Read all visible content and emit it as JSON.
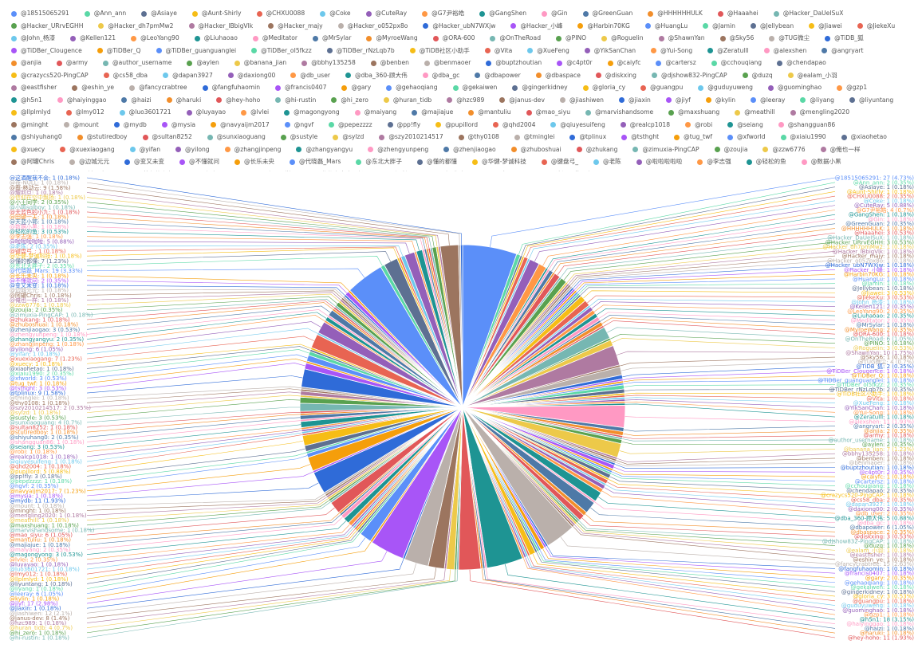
{
  "chart_data": {
    "type": "pie",
    "slices": [
      {
        "name": "@18515065291",
        "value": 27,
        "pct": "4.73%"
      },
      {
        "name": "@Ann_ann",
        "value": 2,
        "pct": "0.35%"
      },
      {
        "name": "@Asiaye",
        "value": 1,
        "pct": "0.18%"
      },
      {
        "name": "@Aunt-Shirly",
        "value": 1,
        "pct": "0.18%"
      },
      {
        "name": "@CHXU0088",
        "value": 2,
        "pct": "0.35%"
      },
      {
        "name": "@Coke",
        "value": 1,
        "pct": "0.18%"
      },
      {
        "name": "@CuteRay",
        "value": 5,
        "pct": "0.88%"
      },
      {
        "name": "@G7尹裕皓",
        "value": 4,
        "pct": "0.7%"
      },
      {
        "name": "@GangShen",
        "value": 1,
        "pct": "0.18%"
      },
      {
        "name": "@Gin",
        "value": 1,
        "pct": "0.18%"
      },
      {
        "name": "@GreenGuan",
        "value": 2,
        "pct": "0.35%"
      },
      {
        "name": "@HHHHHHULK",
        "value": 1,
        "pct": "0.18%"
      },
      {
        "name": "@Haaahei",
        "value": 3,
        "pct": "0.53%"
      },
      {
        "name": "@Hacker_DaUeISuX",
        "value": 1,
        "pct": "0.18%"
      },
      {
        "name": "@Hacker_URrvEGHH",
        "value": 3,
        "pct": "0.53%"
      },
      {
        "name": "@Hacker_dh7pmMw2",
        "value": 1,
        "pct": "0.18%"
      },
      {
        "name": "@Hacker_lBbigVlk",
        "value": 1,
        "pct": "0.18%"
      },
      {
        "name": "@Hacker_majy",
        "value": 1,
        "pct": "0.18%"
      },
      {
        "name": "@Hacker_o052px8o",
        "value": 1,
        "pct": "0.18%"
      },
      {
        "name": "@Hacker_ubN7WXjw",
        "value": 1,
        "pct": "0.18%"
      },
      {
        "name": "@Hacker_小峰",
        "value": 1,
        "pct": "0.18%"
      },
      {
        "name": "@Harbin70KG",
        "value": 1,
        "pct": "0.18%"
      },
      {
        "name": "@HuangLu",
        "value": 1,
        "pct": "0.18%"
      },
      {
        "name": "@Jamin",
        "value": 1,
        "pct": "0.18%"
      },
      {
        "name": "@Jellybean",
        "value": 1,
        "pct": "0.18%"
      },
      {
        "name": "@Jiawei",
        "value": 3,
        "pct": "0.53%"
      },
      {
        "name": "@JiekeXu",
        "value": 3,
        "pct": "0.53%"
      },
      {
        "name": "@John_杨漆",
        "value": 1,
        "pct": "0.18%"
      },
      {
        "name": "@Kellen121",
        "value": 2,
        "pct": "0.35%"
      },
      {
        "name": "@LeoYang90",
        "value": 2,
        "pct": "0.35%"
      },
      {
        "name": "@Liuhaoao",
        "value": 2,
        "pct": "0.35%"
      },
      {
        "name": "@Meditator",
        "value": 2,
        "pct": "0.35%"
      },
      {
        "name": "@MrSylar",
        "value": 1,
        "pct": "0.18%"
      },
      {
        "name": "@MyroeWang",
        "value": 2,
        "pct": "0.35%"
      },
      {
        "name": "@ORA-600",
        "value": 1,
        "pct": "0.18%"
      },
      {
        "name": "@OnTheRoad",
        "value": 6,
        "pct": "1.05%"
      },
      {
        "name": "@PINO",
        "value": 1,
        "pct": "0.18%"
      },
      {
        "name": "@Roguelin",
        "value": 3,
        "pct": "0.53%"
      },
      {
        "name": "@ShawnYan",
        "value": 10,
        "pct": "1.75%"
      },
      {
        "name": "@Sky56",
        "value": 1,
        "pct": "0.18%"
      },
      {
        "name": "@TUG微尘",
        "value": 4,
        "pct": "0.7%"
      },
      {
        "name": "@TiDB_狐",
        "value": 2,
        "pct": "0.35%"
      },
      {
        "name": "@TiDBer_Clougence",
        "value": 1,
        "pct": "0.18%"
      },
      {
        "name": "@TiDBer_Q",
        "value": 1,
        "pct": "0.18%"
      },
      {
        "name": "@TiDBer_guanguanglei",
        "value": 1,
        "pct": "0.18%"
      },
      {
        "name": "@TiDBer_oI5fkzz",
        "value": 2,
        "pct": "0.35%"
      },
      {
        "name": "@TiDBer_rNzLqb7b",
        "value": 2,
        "pct": "0.35%"
      },
      {
        "name": "@TiDB社区小助手",
        "value": 1,
        "pct": "0.18%"
      },
      {
        "name": "@Vita",
        "value": 1,
        "pct": "0.18%"
      },
      {
        "name": "@XueFeng",
        "value": 1,
        "pct": "0.18%"
      },
      {
        "name": "@YikSanChan",
        "value": 1,
        "pct": "0.18%"
      },
      {
        "name": "@Yui-Song",
        "value": 1,
        "pct": "0.18%"
      },
      {
        "name": "@Zeratulll",
        "value": 1,
        "pct": "0.18%"
      },
      {
        "name": "@alexshen",
        "value": 11,
        "pct": "1.93%"
      },
      {
        "name": "@angryart",
        "value": 2,
        "pct": "0.35%"
      },
      {
        "name": "@anjia",
        "value": 2,
        "pct": "0.35%"
      },
      {
        "name": "@army",
        "value": 1,
        "pct": "0.18%"
      },
      {
        "name": "@author_username",
        "value": 1,
        "pct": "0.18%"
      },
      {
        "name": "@aylen",
        "value": 2,
        "pct": "0.35%"
      },
      {
        "name": "@banana_jian",
        "value": 7,
        "pct": "1.23%"
      },
      {
        "name": "@bbhy135258",
        "value": 1,
        "pct": "0.18%"
      },
      {
        "name": "@benben",
        "value": 1,
        "pct": "0.18%"
      },
      {
        "name": "@benmaoer",
        "value": 1,
        "pct": "0.18%"
      },
      {
        "name": "@buptzhoutian",
        "value": 1,
        "pct": "0.18%"
      },
      {
        "name": "@c4pt0r",
        "value": 2,
        "pct": "0.35%"
      },
      {
        "name": "@caiyfc",
        "value": 1,
        "pct": "0.18%"
      },
      {
        "name": "@cartersz",
        "value": 1,
        "pct": "0.18%"
      },
      {
        "name": "@cchouqiang",
        "value": 1,
        "pct": "0.18%"
      },
      {
        "name": "@chendapao",
        "value": 2,
        "pct": "0.35%"
      },
      {
        "name": "@crazycs520-PingCAP",
        "value": 1,
        "pct": "0.18%"
      },
      {
        "name": "@cs58_dba",
        "value": 2,
        "pct": "0.35%"
      },
      {
        "name": "@dapan3927",
        "value": 1,
        "pct": "0.18%"
      },
      {
        "name": "@daxiong00",
        "value": 2,
        "pct": "0.35%"
      },
      {
        "name": "@db_user",
        "value": 2,
        "pct": "0.35%"
      },
      {
        "name": "@dba_360-顾大伟",
        "value": 5,
        "pct": "0.88%"
      },
      {
        "name": "@dba_gc",
        "value": 1,
        "pct": "0.18%"
      },
      {
        "name": "@dbapower",
        "value": 6,
        "pct": "1.05%"
      },
      {
        "name": "@dbaspace",
        "value": 2,
        "pct": "0.35%"
      },
      {
        "name": "@diskxing",
        "value": 3,
        "pct": "0.53%"
      },
      {
        "name": "@djshow832-PingCAP",
        "value": 1,
        "pct": "0.18%"
      },
      {
        "name": "@duzq",
        "value": 1,
        "pct": "0.18%"
      },
      {
        "name": "@ealam_小羽",
        "value": 1,
        "pct": "0.18%"
      },
      {
        "name": "@eastfisher",
        "value": 1,
        "pct": "0.18%"
      },
      {
        "name": "@eshin_ye",
        "value": 1,
        "pct": "0.18%"
      },
      {
        "name": "@fancycrabtree",
        "value": 15,
        "pct": "2.63%"
      },
      {
        "name": "@fangfuhaomin",
        "value": 1,
        "pct": "0.18%"
      },
      {
        "name": "@francis0407",
        "value": 1,
        "pct": "0.18%"
      },
      {
        "name": "@gary",
        "value": 2,
        "pct": "0.35%"
      },
      {
        "name": "@gehaoqiang",
        "value": 1,
        "pct": "0.18%"
      },
      {
        "name": "@gekaiwen",
        "value": 1,
        "pct": "0.18%"
      },
      {
        "name": "@gingerkidney",
        "value": 1,
        "pct": "0.18%"
      },
      {
        "name": "@gloria_cy",
        "value": 3,
        "pct": "0.53%"
      },
      {
        "name": "@guangpu",
        "value": 1,
        "pct": "0.18%"
      },
      {
        "name": "@guduyuweng",
        "value": 1,
        "pct": "0.18%"
      },
      {
        "name": "@guominghao",
        "value": 1,
        "pct": "0.18%"
      },
      {
        "name": "@gzp1",
        "value": 1,
        "pct": "0.18%"
      },
      {
        "name": "@h5n1",
        "value": 18,
        "pct": "3.15%"
      },
      {
        "name": "@haiyinggao",
        "value": 1,
        "pct": "0.18%"
      },
      {
        "name": "@haizi",
        "value": 1,
        "pct": "0.18%"
      },
      {
        "name": "@haruki",
        "value": 1,
        "pct": "0.18%"
      },
      {
        "name": "@hey-hoho",
        "value": 11,
        "pct": "1.93%"
      },
      {
        "name": "@hi-rustin",
        "value": 1,
        "pct": "0.18%"
      },
      {
        "name": "@hi_zero",
        "value": 1,
        "pct": "0.18%"
      },
      {
        "name": "@huran_tidb",
        "value": 4,
        "pct": "0.7%"
      },
      {
        "name": "@hzc989",
        "value": 1,
        "pct": "0.18%"
      },
      {
        "name": "@janus-dev",
        "value": 8,
        "pct": "1.4%"
      },
      {
        "name": "@jiashiwen",
        "value": 12,
        "pct": "2.1%"
      },
      {
        "name": "@jiaxin",
        "value": 1,
        "pct": "0.18%"
      },
      {
        "name": "@jiyf",
        "value": 17,
        "pct": "2.98%"
      },
      {
        "name": "@kylin",
        "value": 1,
        "pct": "0.18%"
      },
      {
        "name": "@leeray",
        "value": 6,
        "pct": "1.05%"
      },
      {
        "name": "@liyang",
        "value": 1,
        "pct": "0.18%"
      },
      {
        "name": "@liyuntang",
        "value": 1,
        "pct": "0.18%"
      },
      {
        "name": "@llplmlyd",
        "value": 1,
        "pct": "0.18%"
      },
      {
        "name": "@lmy012",
        "value": 1,
        "pct": "0.18%"
      },
      {
        "name": "@luo3601721",
        "value": 1,
        "pct": "0.18%"
      },
      {
        "name": "@luyayao",
        "value": 1,
        "pct": "0.18%"
      },
      {
        "name": "@lvlei",
        "value": 2,
        "pct": "0.35%"
      },
      {
        "name": "@magongyong",
        "value": 3,
        "pct": "0.53%"
      },
      {
        "name": "@maiyang",
        "value": 2,
        "pct": "0.35%"
      },
      {
        "name": "@majiajue",
        "value": 1,
        "pct": "0.18%"
      },
      {
        "name": "@mantuliu",
        "value": 1,
        "pct": "0.18%"
      },
      {
        "name": "@mao_siyu",
        "value": 6,
        "pct": "1.05%"
      },
      {
        "name": "@marvishandsome",
        "value": 1,
        "pct": "0.18%"
      },
      {
        "name": "@maxshuang",
        "value": 1,
        "pct": "0.18%"
      },
      {
        "name": "@meathill",
        "value": 1,
        "pct": "0.18%"
      },
      {
        "name": "@mengling2020",
        "value": 1,
        "pct": "0.18%"
      },
      {
        "name": "@minght",
        "value": 1,
        "pct": "0.18%"
      },
      {
        "name": "@mount",
        "value": 1,
        "pct": "0.18%"
      },
      {
        "name": "@mydb",
        "value": 11,
        "pct": "1.93%"
      },
      {
        "name": "@mysia",
        "value": 1,
        "pct": "0.18%"
      },
      {
        "name": "@navyaijm2017",
        "value": 7,
        "pct": "1.23%"
      },
      {
        "name": "@ngvf",
        "value": 2,
        "pct": "0.35%"
      },
      {
        "name": "@pepezzzz",
        "value": 1,
        "pct": "0.18%"
      },
      {
        "name": "@pp!fly",
        "value": 3,
        "pct": "0.18%"
      },
      {
        "name": "@pupillord",
        "value": 5,
        "pct": "0.88%"
      },
      {
        "name": "@qhd2004",
        "value": 1,
        "pct": "0.18%"
      },
      {
        "name": "@qiuyesuifeng",
        "value": 1,
        "pct": "0.18%"
      },
      {
        "name": "@realcp1018",
        "value": 1,
        "pct": "0.18%"
      },
      {
        "name": "@robi",
        "value": 1,
        "pct": "0.18%"
      },
      {
        "name": "@seiang",
        "value": 3,
        "pct": "0.53%"
      },
      {
        "name": "@shangguan86",
        "value": 1,
        "pct": "0.18%"
      },
      {
        "name": "@shiyuhang0",
        "value": 2,
        "pct": "0.35%"
      },
      {
        "name": "@stutiredboy",
        "value": 1,
        "pct": "0.18%"
      },
      {
        "name": "@sultan8252",
        "value": 1,
        "pct": "0.18%"
      },
      {
        "name": "@sunxiaoguang",
        "value": 4,
        "pct": "0.7%"
      },
      {
        "name": "@sustyle",
        "value": 3,
        "pct": "0.53%"
      },
      {
        "name": "@sylzd",
        "value": 1,
        "pct": "0.18%"
      },
      {
        "name": "@szy2010214517",
        "value": 2,
        "pct": "0.35%"
      },
      {
        "name": "@thy0108",
        "value": 1,
        "pct": "0.18%"
      },
      {
        "name": "@tminglei",
        "value": 1,
        "pct": "0.18%"
      },
      {
        "name": "@tplinux",
        "value": 9,
        "pct": "1.58%"
      },
      {
        "name": "@tsthght",
        "value": 3,
        "pct": "0.53%"
      },
      {
        "name": "@tug_twf",
        "value": 1,
        "pct": "0.18%"
      },
      {
        "name": "@xfworld",
        "value": 3,
        "pct": "0.53%"
      },
      {
        "name": "@xiaiu1990",
        "value": 2,
        "pct": "0.35%"
      },
      {
        "name": "@xiaohetao",
        "value": 1,
        "pct": "0.18%"
      },
      {
        "name": "@xuecy",
        "value": 1,
        "pct": "0.18%"
      },
      {
        "name": "@xuexiaogang",
        "value": 7,
        "pct": "1.23%"
      },
      {
        "name": "@yifan",
        "value": 1,
        "pct": "0.18%"
      },
      {
        "name": "@yilong",
        "value": 6,
        "pct": "1.05%"
      },
      {
        "name": "@zhangjinpeng",
        "value": 1,
        "pct": "0.18%"
      },
      {
        "name": "@zhangyangyu",
        "value": 2,
        "pct": "0.35%"
      },
      {
        "name": "@zhengyunpeng",
        "value": 1,
        "pct": "0.18%"
      },
      {
        "name": "@zhenjiaogao",
        "value": 3,
        "pct": "0.53%"
      },
      {
        "name": "@zhuboshuai",
        "value": 1,
        "pct": "0.18%"
      },
      {
        "name": "@zhukang",
        "value": 1,
        "pct": "0.18%"
      },
      {
        "name": "@zimuxia-PingCAP",
        "value": 1,
        "pct": "0.18%"
      },
      {
        "name": "@zoujia",
        "value": 2,
        "pct": "0.35%"
      },
      {
        "name": "@zzw6776",
        "value": 1,
        "pct": "0.18%"
      },
      {
        "name": "@俺也一样",
        "value": 1,
        "pct": "0.18%"
      },
      {
        "name": "@阿罐Chris",
        "value": 1,
        "pct": "0.18%"
      },
      {
        "name": "@边城元元",
        "value": 1,
        "pct": "0.18%"
      },
      {
        "name": "@变又未变",
        "value": 1,
        "pct": "0.18%"
      },
      {
        "name": "@不懂就问",
        "value": 2,
        "pct": "0.35%"
      },
      {
        "name": "@长乐未央",
        "value": 1,
        "pct": "0.18%"
      },
      {
        "name": "@代晓磊_Mars",
        "value": 19,
        "pct": "3.33%"
      },
      {
        "name": "@东北大胖子",
        "value": 2,
        "pct": "0.35%"
      },
      {
        "name": "@懂的都懂",
        "value": 7,
        "pct": "1.23%"
      },
      {
        "name": "@华健-梦诚科技",
        "value": 1,
        "pct": "0.18%"
      },
      {
        "name": "@键盘弓_",
        "value": 1,
        "pct": "0.18%"
      },
      {
        "name": "@老陈",
        "value": 2,
        "pct": "0.35%"
      },
      {
        "name": "@啦啦啦啦啦",
        "value": 5,
        "pct": "0.88%"
      },
      {
        "name": "@李志强",
        "value": 1,
        "pct": "0.18%"
      },
      {
        "name": "@轻松的鱼",
        "value": 3,
        "pct": "0.53%"
      },
      {
        "name": "@数据小黑",
        "value": 1,
        "pct": "0.18%"
      },
      {
        "name": "@天蓝小郭",
        "value": 1,
        "pct": "0.18%"
      },
      {
        "name": "@田键一夫",
        "value": 1,
        "pct": "0.18%"
      },
      {
        "name": "@天蓝色的小九",
        "value": 1,
        "pct": "0.18%"
      },
      {
        "name": "@小鸣sqlboy",
        "value": 1,
        "pct": "0.18%"
      },
      {
        "name": "@小王同学",
        "value": 2,
        "pct": "0.35%"
      },
      {
        "name": "@信仰在空中飘扬",
        "value": 1,
        "pct": "0.18%"
      },
      {
        "name": "@耀利旦",
        "value": 1,
        "pct": "0.18%"
      },
      {
        "name": "@裔-移动云",
        "value": 9,
        "pct": "1.58%"
      },
      {
        "name": "@夜-NULL",
        "value": 1,
        "pct": "0.18%"
      },
      {
        "name": "@这酒醒我不会",
        "value": 1,
        "pct": "0.18%"
      }
    ],
    "legend_position": "top",
    "label_position": "outside",
    "palette": [
      "#5b8ff9",
      "#5ad8a6",
      "#5d7092",
      "#f6bd16",
      "#e86452",
      "#6dc8ec",
      "#945fb9",
      "#ff9845",
      "#1e9493",
      "#ff99c3",
      "#4e79a7",
      "#f28e2b",
      "#e15759",
      "#76b7b2",
      "#59a14f",
      "#edc949",
      "#af7aa1",
      "#9c755f",
      "#bab0ab",
      "#2f6bd8",
      "#a855f7",
      "#f59e0b"
    ]
  }
}
